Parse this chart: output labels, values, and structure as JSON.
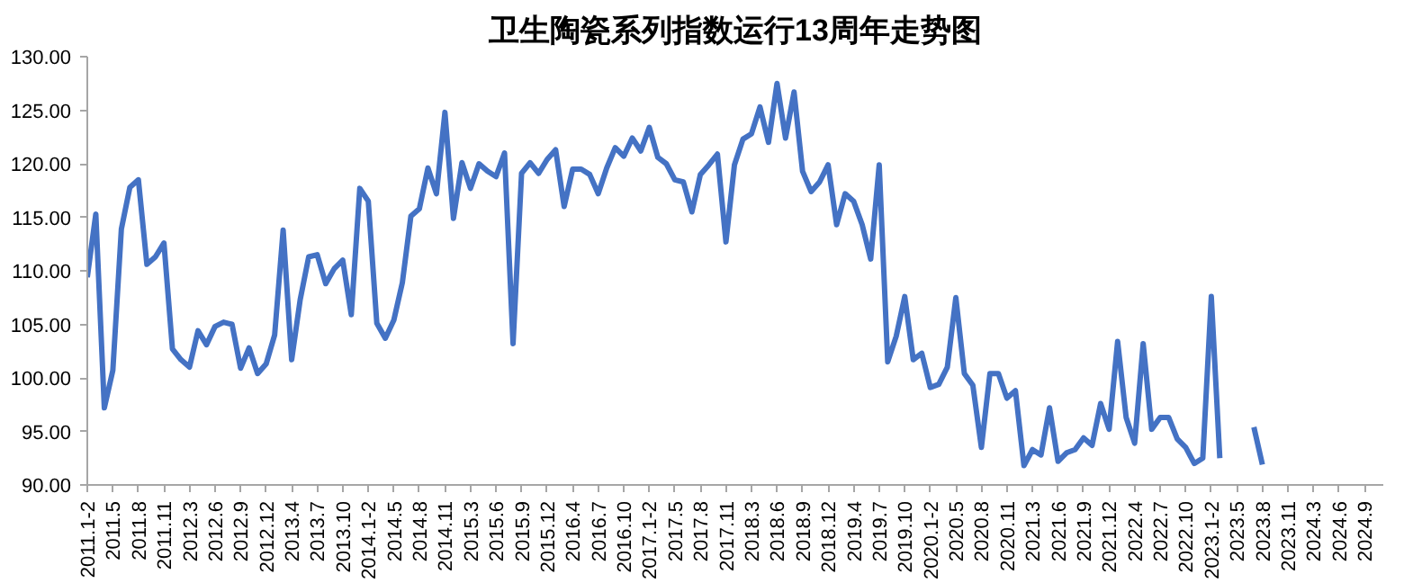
{
  "chart_data": {
    "type": "line",
    "title": "卫生陶瓷系列指数运行13周年走势图",
    "categories": [
      "2011.1-2",
      null,
      null,
      "2011.5",
      null,
      null,
      "2011.8",
      null,
      null,
      "2011.11",
      null,
      null,
      "2012.3",
      null,
      null,
      "2012.6",
      null,
      null,
      "2012.9",
      null,
      null,
      "2012.12",
      null,
      null,
      "2013.4",
      null,
      null,
      "2013.7",
      null,
      null,
      "2013.10",
      null,
      null,
      "2014.1-2",
      null,
      null,
      "2014.5",
      null,
      null,
      "2014.8",
      null,
      null,
      "2014.11",
      null,
      null,
      "2015.3",
      null,
      null,
      "2015.6",
      null,
      null,
      "2015.9",
      null,
      null,
      "2015.12",
      null,
      null,
      "2016.4",
      null,
      null,
      "2016.7",
      null,
      null,
      "2016.10",
      null,
      null,
      "2017.1-2",
      null,
      null,
      "2017.5",
      null,
      null,
      "2017.8",
      null,
      null,
      "2017.11",
      null,
      null,
      "2018.3",
      null,
      null,
      "2018.6",
      null,
      null,
      "2018.9",
      null,
      null,
      "2018.12",
      null,
      null,
      "2019.4",
      null,
      null,
      "2019.7",
      null,
      null,
      "2019.10",
      null,
      null,
      "2020.1-2",
      null,
      null,
      "2020.5",
      null,
      null,
      "2020.8",
      null,
      null,
      "2020.11",
      null,
      null,
      "2021.3",
      null,
      null,
      "2021.6",
      null,
      null,
      "2021.9",
      null,
      null,
      "2021.12",
      null,
      null,
      "2022.4",
      null,
      null,
      "2022.7",
      null,
      null,
      "2022.10",
      null,
      null,
      "2023.1-2",
      null,
      null,
      "2023.5",
      null,
      null,
      "2023.8",
      null,
      null,
      "2023.11",
      null,
      null,
      "2024.3",
      null,
      null,
      "2024.6",
      null,
      null,
      "2024.9"
    ],
    "series": [
      {
        "color": "#4472c4",
        "values": [
          109.4,
          115.3,
          97.2,
          100.7,
          113.9,
          117.8,
          118.5,
          110.6,
          111.3,
          112.6,
          102.7,
          101.7,
          101.0,
          104.4,
          103.1,
          104.8,
          105.2,
          105.0,
          100.9,
          102.8,
          100.4,
          101.3,
          104.0,
          113.8,
          101.7,
          107.3,
          111.3,
          111.5,
          108.8,
          110.2,
          111.0,
          105.9,
          117.7,
          116.5,
          105.1,
          103.7,
          105.4,
          108.9,
          115.1,
          115.8,
          119.6,
          117.2,
          124.8,
          114.9,
          120.1,
          117.7,
          120.0,
          119.3,
          118.8,
          121.0,
          103.2,
          119.1,
          120.1,
          119.1,
          120.4,
          121.3,
          116.0,
          119.5,
          119.5,
          119.0,
          117.2,
          119.6,
          121.5,
          120.7,
          122.4,
          121.2,
          123.4,
          120.6,
          120.0,
          118.5,
          118.3,
          115.5,
          119.0,
          119.9,
          120.9,
          112.7,
          119.9,
          122.3,
          122.8,
          125.3,
          122.0,
          127.5,
          122.4,
          126.7,
          119.3,
          117.4,
          118.3,
          119.9,
          114.3,
          117.2,
          116.5,
          114.3,
          111.1,
          119.9,
          101.5,
          103.9,
          107.6,
          101.7,
          102.3,
          99.1,
          99.4,
          101.0,
          107.5,
          100.4,
          99.3,
          93.5,
          100.4,
          100.4,
          98.1,
          98.8,
          91.8,
          93.3,
          92.8,
          97.2,
          92.2,
          93.0,
          93.3,
          94.4,
          93.7,
          97.6,
          95.2,
          103.4,
          96.3,
          93.9,
          103.2,
          95.2,
          96.3,
          96.3,
          94.3,
          93.5,
          92.0,
          92.5,
          107.6,
          92.5,
          null,
          null,
          null,
          95.4,
          91.9,
          null,
          null,
          null,
          null,
          null,
          null,
          null,
          null,
          null,
          null,
          null,
          null
        ]
      }
    ],
    "ylim": [
      90,
      130
    ],
    "yticks": [
      {
        "value": 90,
        "label": "90.00"
      },
      {
        "value": 95,
        "label": "95.00"
      },
      {
        "value": 100,
        "label": "100.00"
      },
      {
        "value": 105,
        "label": "105.00"
      },
      {
        "value": 110,
        "label": "110.00"
      },
      {
        "value": 115,
        "label": "115.00"
      },
      {
        "value": 120,
        "label": "120.00"
      },
      {
        "value": 125,
        "label": "125.00"
      },
      {
        "value": 130,
        "label": "130.00"
      }
    ],
    "grid": false,
    "line_style": "solid",
    "marker": "none"
  }
}
